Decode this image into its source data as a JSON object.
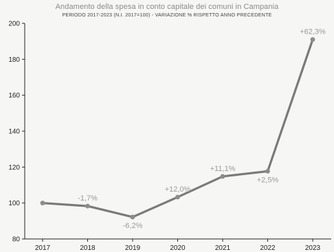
{
  "chart_data": {
    "type": "line",
    "title": "Andamento della spesa in conto capitale dei comuni in Campania",
    "subtitle": "PERIODO 2017-2023 (N.I. 2017=100) - VARIAZIONE % RISPETTO ANNO PRECEDENTE",
    "xlabel": "",
    "ylabel": "",
    "categories": [
      "2017",
      "2018",
      "2019",
      "2020",
      "2021",
      "2022",
      "2023"
    ],
    "series": [
      {
        "values": [
          100,
          98.3,
          92.2,
          103.3,
          114.8,
          117.7,
          191.0
        ],
        "labels": [
          "",
          "-1,7%",
          "-6,2%",
          "+12,0%",
          "+11,1%",
          "+2,5%",
          "+62,3%"
        ]
      }
    ],
    "ylim": [
      80,
      200
    ],
    "yticks": [
      "80",
      "100",
      "120",
      "140",
      "160",
      "180",
      "200"
    ],
    "grid": false,
    "colors": {
      "line": "#7a7a7a",
      "marker": "#8c8c8c",
      "label": "#9a9a9a",
      "axis": "#222222"
    }
  }
}
